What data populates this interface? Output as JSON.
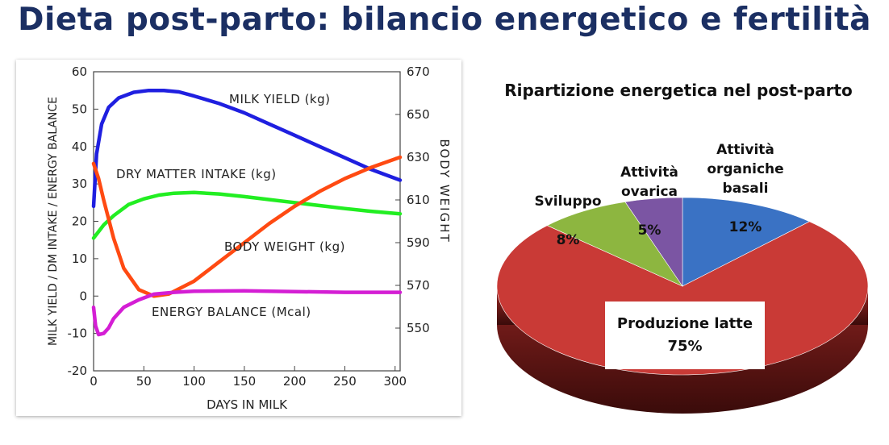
{
  "page": {
    "title": "Dieta post-parto: bilancio energetico e fertilità"
  },
  "chart_data": [
    {
      "type": "line",
      "title": "",
      "xlabel": "DAYS IN MILK",
      "ylabel": "MILK YIELD / DM INTAKE / ENERGY BALANCE",
      "y2label": "BODY WEIGHT",
      "xlim": [
        0,
        305
      ],
      "ylim": [
        -20,
        60
      ],
      "y2lim": [
        530,
        670
      ],
      "xticks": [
        0,
        50,
        100,
        150,
        200,
        250,
        300
      ],
      "yticks": [
        -20,
        -10,
        0,
        10,
        20,
        30,
        40,
        50,
        60
      ],
      "y2ticks": [
        550,
        570,
        590,
        610,
        630,
        650,
        670
      ],
      "grid": false,
      "series": [
        {
          "name": "MILK YIELD (kg)",
          "axis": "left",
          "color": "#1f1fe0",
          "x": [
            0,
            3,
            8,
            15,
            25,
            40,
            55,
            70,
            85,
            100,
            125,
            150,
            175,
            200,
            225,
            250,
            275,
            305
          ],
          "y": [
            24,
            38,
            46,
            50.5,
            53,
            54.5,
            55,
            55,
            54.6,
            53.5,
            51.5,
            49,
            46,
            43,
            40,
            37,
            34,
            31
          ]
        },
        {
          "name": "DRY MATTER INTAKE (kg)",
          "axis": "left",
          "color": "#22ee22",
          "x": [
            0,
            10,
            20,
            35,
            50,
            65,
            80,
            100,
            125,
            150,
            175,
            200,
            225,
            250,
            275,
            305
          ],
          "y": [
            15.5,
            19,
            21.5,
            24.5,
            26,
            27,
            27.5,
            27.7,
            27.3,
            26.6,
            25.8,
            25,
            24.2,
            23.4,
            22.7,
            22
          ]
        },
        {
          "name": "BODY WEIGHT (kg)",
          "axis": "right",
          "color": "#ff4a12",
          "x": [
            0,
            5,
            10,
            20,
            30,
            45,
            60,
            75,
            100,
            125,
            150,
            175,
            200,
            225,
            250,
            275,
            305
          ],
          "y": [
            627,
            620,
            610,
            592,
            578,
            568,
            565,
            566,
            572,
            581,
            590,
            599,
            607,
            614,
            620,
            625,
            630
          ]
        },
        {
          "name": "ENERGY BALANCE (Mcal)",
          "axis": "left",
          "color": "#d41ed4",
          "x": [
            0,
            2,
            5,
            10,
            15,
            20,
            30,
            45,
            60,
            80,
            100,
            150,
            200,
            250,
            305
          ],
          "y": [
            -3,
            -8,
            -10.3,
            -10,
            -8.5,
            -6,
            -3,
            -1,
            0.5,
            1,
            1.3,
            1.4,
            1.2,
            1,
            1
          ]
        }
      ]
    },
    {
      "type": "pie",
      "title": "Ripartizione energetica nel post-parto",
      "slices": [
        {
          "label": "Attività organiche basali",
          "value": 12,
          "value_label": "12%",
          "color": "#3a72c4"
        },
        {
          "label": "Produzione latte",
          "value": 75,
          "value_label": "75%",
          "color": "#c93a36"
        },
        {
          "label": "Sviluppo",
          "value": 8,
          "value_label": "8%",
          "color": "#8db640"
        },
        {
          "label": "Attività ovarica",
          "value": 5,
          "value_label": "5%",
          "color": "#7b55a3"
        }
      ]
    }
  ]
}
